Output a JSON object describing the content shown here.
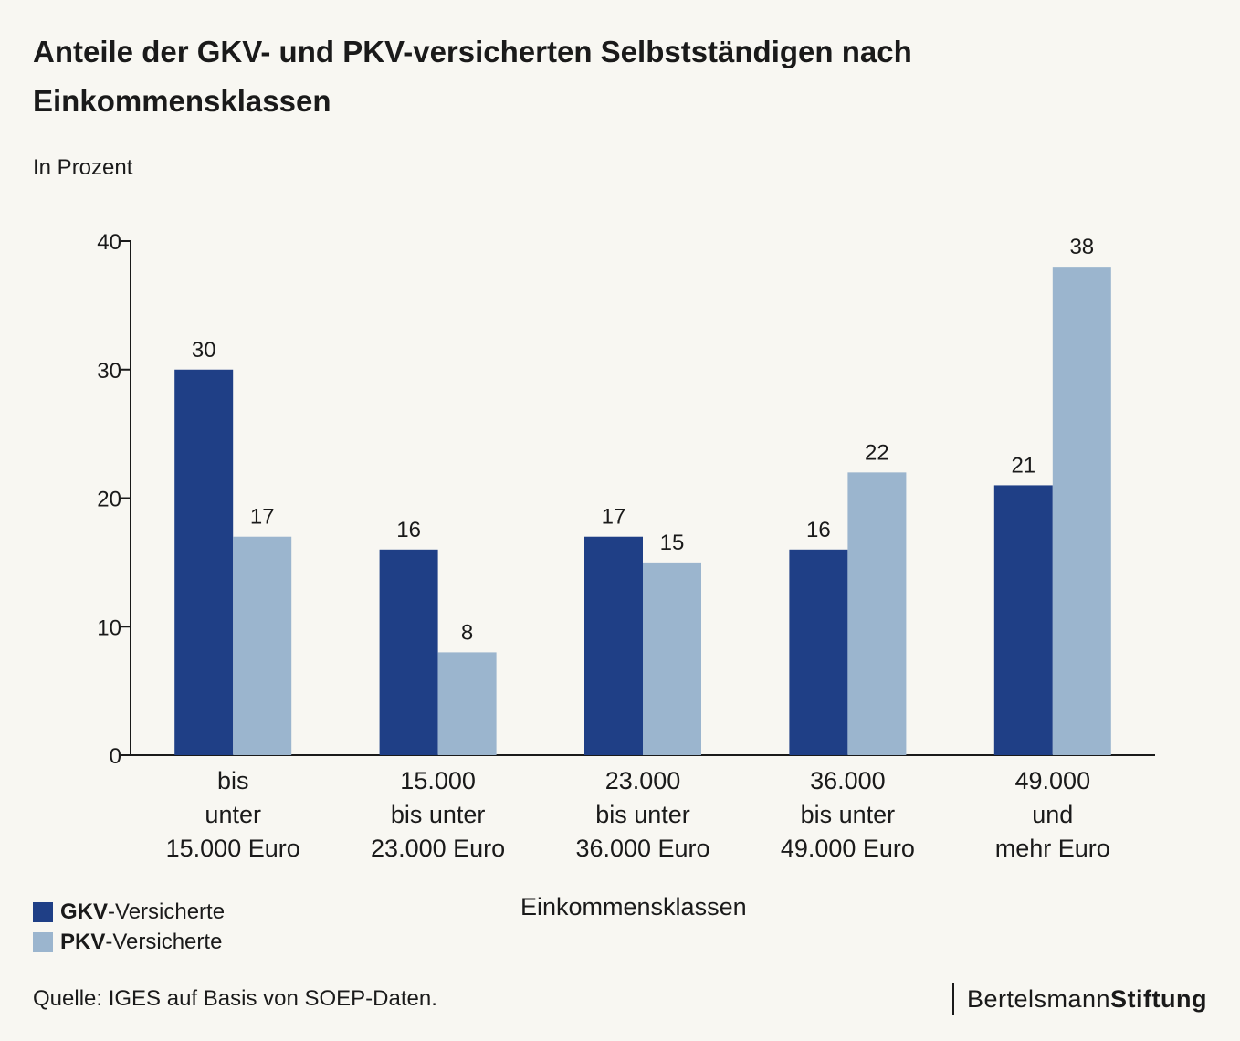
{
  "header": {
    "title": "Anteile der GKV- und PKV-versicherten Selbstständigen nach Einkommensklassen",
    "subtitle": "In Prozent"
  },
  "legend": {
    "items": [
      {
        "strong": "GKV",
        "rest": "-Versicherte",
        "color": "#1f3f86"
      },
      {
        "strong": "PKV",
        "rest": "-Versicherte",
        "color": "#9bb5ce"
      }
    ]
  },
  "footer": {
    "source": "Quelle: IGES auf Basis von SOEP-Daten.",
    "brand_regular": "Bertelsmann",
    "brand_strong": "Stiftung"
  },
  "chart_data": {
    "type": "bar",
    "categories": [
      [
        "bis",
        "unter",
        "15.000 Euro"
      ],
      [
        "15.000",
        "bis unter",
        "23.000 Euro"
      ],
      [
        "23.000",
        "bis unter",
        "36.000 Euro"
      ],
      [
        "36.000",
        "bis unter",
        "49.000 Euro"
      ],
      [
        "49.000",
        "und",
        "mehr Euro"
      ]
    ],
    "series": [
      {
        "name": "GKV-Versicherte",
        "values": [
          30,
          16,
          17,
          16,
          21
        ],
        "value_labels": [
          "30",
          "16",
          "17",
          "16",
          "21"
        ],
        "color": "#1f3f86"
      },
      {
        "name": "PKV-Versicherte",
        "values": [
          17,
          8,
          15,
          22,
          38
        ],
        "value_labels": [
          "17",
          "8",
          "15",
          "22",
          "38"
        ],
        "color": "#9bb5ce"
      }
    ],
    "title": "Anteile der GKV- und PKV-versicherten Selbstständigen nach Einkommensklassen",
    "xlabel": "Einkommensklassen",
    "ylabel": "In Prozent",
    "ylim": [
      0,
      40
    ],
    "yticks": [
      0,
      10,
      20,
      30,
      40
    ],
    "grid": false,
    "legend": "bottom-left"
  }
}
